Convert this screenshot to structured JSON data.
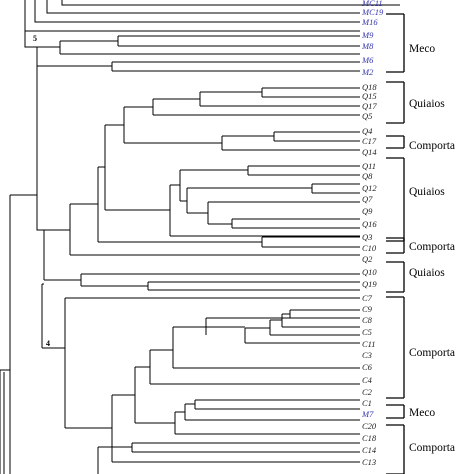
{
  "colors": {
    "line": "#000000",
    "leaf_black": "#222222",
    "leaf_blue": "#3535b0"
  },
  "node_labels": [
    "5",
    "4"
  ],
  "leaves": [
    {
      "label": "MC11",
      "color": "blue"
    },
    {
      "label": "MC19",
      "color": "blue"
    },
    {
      "label": "M16",
      "color": "blue"
    },
    {
      "label": "M9",
      "color": "blue"
    },
    {
      "label": "M8",
      "color": "blue"
    },
    {
      "label": "M6",
      "color": "blue"
    },
    {
      "label": "M2",
      "color": "blue"
    },
    {
      "label": "Q18",
      "color": "black"
    },
    {
      "label": "Q15",
      "color": "black"
    },
    {
      "label": "Q17",
      "color": "black"
    },
    {
      "label": "Q5",
      "color": "black"
    },
    {
      "label": "Q4",
      "color": "black"
    },
    {
      "label": "C17",
      "color": "black"
    },
    {
      "label": "Q14",
      "color": "black"
    },
    {
      "label": "Q11",
      "color": "black"
    },
    {
      "label": "Q8",
      "color": "black"
    },
    {
      "label": "Q12",
      "color": "black"
    },
    {
      "label": "Q7",
      "color": "black"
    },
    {
      "label": "Q9",
      "color": "black"
    },
    {
      "label": "Q16",
      "color": "black"
    },
    {
      "label": "Q3",
      "color": "black"
    },
    {
      "label": "C10",
      "color": "black"
    },
    {
      "label": "Q2",
      "color": "black"
    },
    {
      "label": "Q10",
      "color": "black"
    },
    {
      "label": "Q19",
      "color": "black"
    },
    {
      "label": "C7",
      "color": "black"
    },
    {
      "label": "C9",
      "color": "black"
    },
    {
      "label": "C8",
      "color": "black"
    },
    {
      "label": "C5",
      "color": "black"
    },
    {
      "label": "C11",
      "color": "black"
    },
    {
      "label": "C3",
      "color": "black"
    },
    {
      "label": "C6",
      "color": "black"
    },
    {
      "label": "C4",
      "color": "black"
    },
    {
      "label": "C2",
      "color": "black"
    },
    {
      "label": "C1",
      "color": "black"
    },
    {
      "label": "M7",
      "color": "blue"
    },
    {
      "label": "C20",
      "color": "black"
    },
    {
      "label": "C18",
      "color": "black"
    },
    {
      "label": "C14",
      "color": "black"
    },
    {
      "label": "C13",
      "color": "black"
    }
  ],
  "groups": [
    {
      "label": "Meco"
    },
    {
      "label": "Quiaios"
    },
    {
      "label": "Comporta"
    },
    {
      "label": "Quiaios"
    },
    {
      "label": "Comporta"
    },
    {
      "label": "Quiaios"
    },
    {
      "label": "Comporta"
    },
    {
      "label": "Meco"
    },
    {
      "label": "Comporta"
    }
  ]
}
